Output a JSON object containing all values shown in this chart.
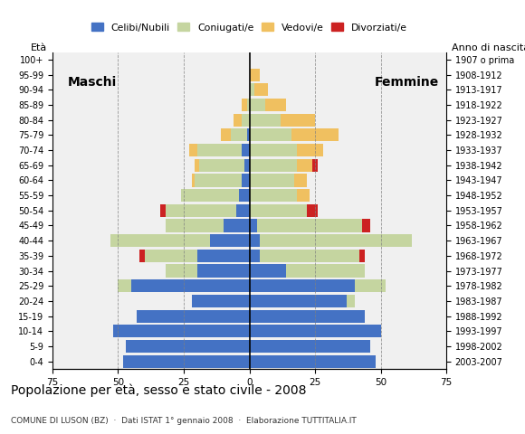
{
  "age_groups": [
    "100+",
    "95-99",
    "90-94",
    "85-89",
    "80-84",
    "75-79",
    "70-74",
    "65-69",
    "60-64",
    "55-59",
    "50-54",
    "45-49",
    "40-44",
    "35-39",
    "30-34",
    "25-29",
    "20-24",
    "15-19",
    "10-14",
    "5-9",
    "0-4"
  ],
  "birth_years": [
    "1907 o prima",
    "1908-1912",
    "1913-1917",
    "1918-1922",
    "1923-1927",
    "1928-1932",
    "1933-1937",
    "1938-1942",
    "1943-1947",
    "1948-1952",
    "1953-1957",
    "1958-1962",
    "1963-1967",
    "1968-1972",
    "1973-1977",
    "1978-1982",
    "1983-1987",
    "1988-1992",
    "1993-1997",
    "1998-2002",
    "2003-2007"
  ],
  "male": {
    "celibe": [
      0,
      0,
      0,
      0,
      0,
      1,
      3,
      2,
      3,
      4,
      5,
      10,
      15,
      20,
      20,
      45,
      22,
      43,
      52,
      47,
      48
    ],
    "coniugato": [
      0,
      0,
      0,
      1,
      3,
      6,
      17,
      17,
      18,
      22,
      27,
      22,
      38,
      20,
      12,
      5,
      0,
      0,
      0,
      0,
      0
    ],
    "vedovo": [
      0,
      0,
      0,
      2,
      3,
      4,
      3,
      2,
      1,
      0,
      0,
      0,
      0,
      0,
      0,
      0,
      0,
      0,
      0,
      0,
      0
    ],
    "divorziato": [
      0,
      0,
      0,
      0,
      0,
      0,
      0,
      0,
      0,
      0,
      2,
      0,
      0,
      2,
      0,
      0,
      0,
      0,
      0,
      0,
      0
    ]
  },
  "female": {
    "nubile": [
      0,
      0,
      0,
      0,
      0,
      0,
      0,
      0,
      0,
      0,
      0,
      3,
      4,
      4,
      14,
      40,
      37,
      44,
      50,
      46,
      48
    ],
    "coniugata": [
      0,
      0,
      2,
      6,
      12,
      16,
      18,
      18,
      17,
      18,
      22,
      40,
      58,
      38,
      30,
      12,
      3,
      0,
      0,
      0,
      0
    ],
    "vedova": [
      0,
      4,
      5,
      8,
      13,
      18,
      10,
      6,
      5,
      5,
      0,
      0,
      0,
      0,
      0,
      0,
      0,
      0,
      0,
      0,
      0
    ],
    "divorziata": [
      0,
      0,
      0,
      0,
      0,
      0,
      0,
      2,
      0,
      0,
      4,
      3,
      0,
      2,
      0,
      0,
      0,
      0,
      0,
      0,
      0
    ]
  },
  "colors": {
    "celibe": "#4472c4",
    "coniugato": "#c5d5a0",
    "vedovo": "#f0c060",
    "divorziato": "#cc2222"
  },
  "xlim": 75,
  "title": "Popolazione per età, sesso e stato civile - 2008",
  "subtitle": "COMUNE DI LUSON (BZ)  ·  Dati ISTAT 1° gennaio 2008  ·  Elaborazione TUTTITALIA.IT",
  "xlabel_left": "Maschi",
  "xlabel_right": "Femmine",
  "ylabel": "Età",
  "ylabel_right": "Anno di nascita",
  "legend_labels": [
    "Celibi/Nubili",
    "Coniugati/e",
    "Vedovi/e",
    "Divorziati/e"
  ],
  "bg_color": "#ffffff",
  "plot_bg_color": "#f0f0f0"
}
